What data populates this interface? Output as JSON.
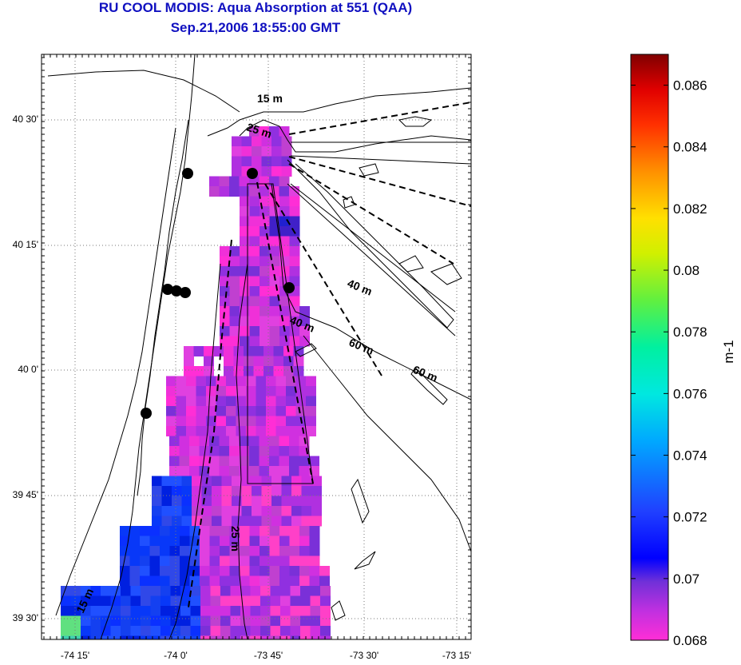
{
  "header": {
    "title": "RU COOL MODIS: Aqua Absorption at 551 (QAA)",
    "subtitle": "Sep.21,2006 18:55:00 GMT"
  },
  "map": {
    "x_ticks": [
      "-74 15'",
      "-74 0'",
      "-73 45'",
      "-73 30'",
      "-73 15'"
    ],
    "y_ticks": [
      "40 30'",
      "40 15'",
      "40 0'",
      "39 45'",
      "39 30'"
    ],
    "contour_labels": [
      "15 m",
      "25 m",
      "40 m",
      "40 m",
      "60 m",
      "60 m",
      "25 m",
      "15 m"
    ],
    "stations_count": 7
  },
  "colorbar": {
    "unit_label": "m-1",
    "ticks": [
      "0.086",
      "0.084",
      "0.082",
      "0.08",
      "0.078",
      "0.076",
      "0.074",
      "0.072",
      "0.07",
      "0.068"
    ],
    "range": [
      0.068,
      0.087
    ]
  },
  "colors": {
    "title": "#1010c0",
    "low": "#ff2ed6",
    "high": "#800000"
  }
}
